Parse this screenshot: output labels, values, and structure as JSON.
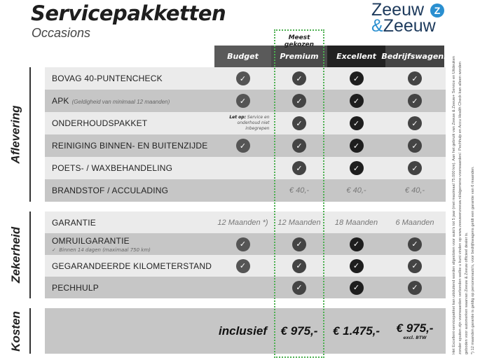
{
  "header": {
    "title": "Servicepakketten",
    "subtitle": "Occasions",
    "logo_text": "Zeeuw & Zeeuw",
    "logo_line1": "Zeeuw",
    "logo_amp": "&",
    "logo_line2": "Zeeuw",
    "highlight_label": "Meest gekozen",
    "highlight_color": "#4caf50"
  },
  "columns": [
    {
      "label": "Budget",
      "color": "#5a5a5a"
    },
    {
      "label": "Premium",
      "color": "#4a4a4a"
    },
    {
      "label": "Excellent",
      "color": "#222222"
    },
    {
      "label": "Bedrijfswagens",
      "color": "#444444"
    }
  ],
  "sections": [
    {
      "title": "Aflevering",
      "rows": [
        {
          "label": "BOVAG 40-PUNTENCHECK",
          "values": [
            "check",
            "check",
            "check",
            "check"
          ]
        },
        {
          "label": "APK",
          "note": "(Geldigheid van minimaal 12 maanden)",
          "values": [
            "check",
            "check",
            "check",
            "check"
          ]
        },
        {
          "label": "ONDERHOUDSPAKKET",
          "budget_note_bold": "Let op:",
          "budget_note": "Service en onderhoud niet inbegrepen",
          "values": [
            "note",
            "check",
            "check",
            "check"
          ]
        },
        {
          "label": "REINIGING BINNEN- EN BUITENZIJDE",
          "values": [
            "check",
            "check",
            "check",
            "check"
          ]
        },
        {
          "label": "POETS- / WAXBEHANDELING",
          "values": [
            "",
            "check",
            "check",
            "check"
          ]
        },
        {
          "label": "BRANDSTOF / ACCULADING",
          "values": [
            "",
            "€ 40,-",
            "€ 40,-",
            "€ 40,-"
          ]
        }
      ]
    },
    {
      "title": "Zekerheid",
      "rows": [
        {
          "label": "GARANTIE",
          "values": [
            "12 Maanden *)",
            "12 Maanden",
            "18 Maanden",
            "6 Maanden"
          ]
        },
        {
          "label": "OMRUILGARANTIE",
          "sub": "Binnen 14 dagen (maximaal 750 km)",
          "values": [
            "check",
            "check",
            "check",
            "check"
          ]
        },
        {
          "label": "GEGARANDEERDE KILOMETERSTAND",
          "values": [
            "check",
            "check",
            "check",
            "check"
          ]
        },
        {
          "label": "PECHHULP",
          "values": [
            "",
            "check",
            "check",
            "check"
          ]
        }
      ]
    },
    {
      "title": "Kosten",
      "rows": [
        {
          "label": "",
          "values": [
            "inclusief",
            "€ 975,-",
            "€ 1.475,-",
            "€ 975,-"
          ],
          "last_sub": "excl. BTW"
        }
      ]
    }
  ],
  "footnote": "Het Excellent-servicepakket kan uitsluitend worden afgesloten voor auto's tot 5 jaar (met maximaal 75.000 km). Aan het gebruik van Zeeuw & Zeeuw+ Service en Uitdeuken zonder spuiten zijn voorwaarden verbonden welke u kunt vinden op www.zeeuwenzeeuw.nl/algemene-voorwaarden/. Pechhulp en Accu Health Check kan alleen worden geboden voor automerken waarvan Zeeuw & Zeeuw officieel dealer is.",
  "footnote2": "*) 12 maanden garantie is geldig op personenauto's, voor bedrijfswagens geldt een garantie van 6 maanden."
}
